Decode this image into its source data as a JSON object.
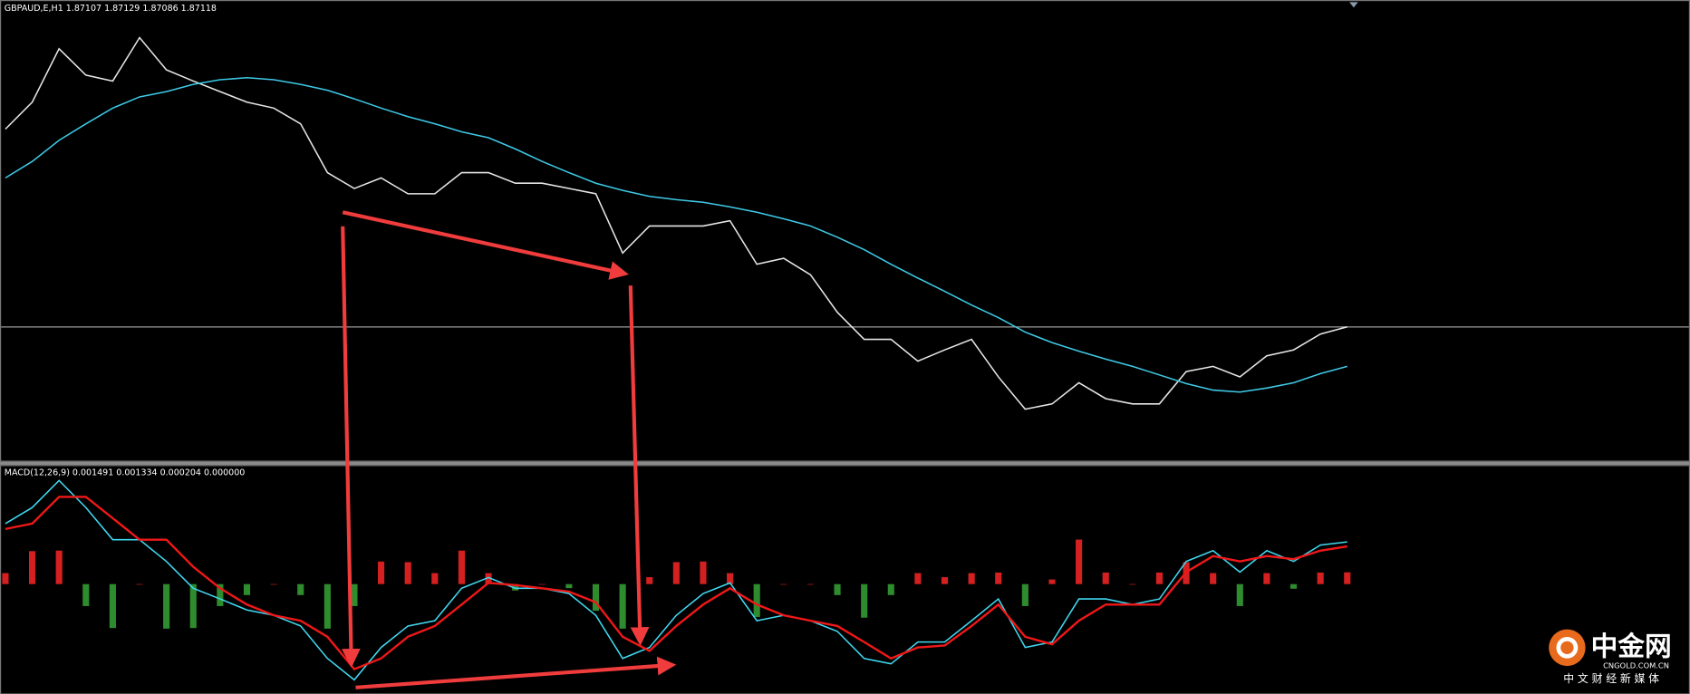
{
  "chart_data": [
    {
      "type": "line",
      "title": "GBPAUD,E,H1  1.87107 1.87129 1.87086 1.87118",
      "ylim": [
        1.8508,
        1.9208
      ],
      "price_line": 1.87118,
      "series": [
        {
          "color": "#e6e6e6",
          "values": [
            1.9012,
            1.9053,
            1.9134,
            1.9094,
            1.9085,
            1.9151,
            1.9102,
            1.9085,
            1.9069,
            1.9053,
            1.9044,
            1.902,
            1.8946,
            1.8922,
            1.8938,
            1.8914,
            1.8914,
            1.8946,
            1.8946,
            1.893,
            1.893,
            1.8922,
            1.8914,
            1.8824,
            1.8865,
            1.8865,
            1.8865,
            1.8873,
            1.8807,
            1.8816,
            1.8791,
            1.8734,
            1.8693,
            1.8693,
            1.866,
            1.8677,
            1.8693,
            1.8636,
            1.8587,
            1.8595,
            1.8627,
            1.8603,
            1.8595,
            1.8595,
            1.8644,
            1.8652,
            1.8636,
            1.8668,
            1.8677,
            1.8701,
            1.8712
          ]
        },
        {
          "color": "#3ec9e6",
          "values": [
            1.8938,
            1.8963,
            1.8995,
            1.902,
            1.9044,
            1.9061,
            1.9069,
            1.908,
            1.9087,
            1.909,
            1.9087,
            1.908,
            1.9071,
            1.9058,
            1.9044,
            1.9031,
            1.902,
            1.9008,
            1.8999,
            1.8982,
            1.8963,
            1.8946,
            1.893,
            1.8919,
            1.891,
            1.8905,
            1.8901,
            1.8894,
            1.8886,
            1.8876,
            1.8865,
            1.8848,
            1.8829,
            1.8807,
            1.8786,
            1.8766,
            1.8745,
            1.8726,
            1.8704,
            1.8688,
            1.8675,
            1.8663,
            1.8652,
            1.8639,
            1.8626,
            1.8616,
            1.8613,
            1.8619,
            1.8627,
            1.8641,
            1.8652
          ]
        }
      ]
    },
    {
      "type": "line",
      "title": "MACD(12,26,9) 0.001491 0.001334 0.000204 0.000000",
      "ylim": [
        -0.0039,
        0.0042
      ],
      "y2lim": [
        -0.0019,
        0.00205
      ],
      "series": [
        {
          "type": "bar",
          "axis": "y2",
          "color": "#d42020",
          "negative_color": "#2e8b2e",
          "values": [
            0.00019,
            0.00057,
            0.00058,
            -0.00038,
            -0.00076,
            0,
            -0.00077,
            -0.00076,
            -0.00038,
            -0.00019,
            0,
            -0.00019,
            -0.00077,
            -0.00038,
            0.00039,
            0.00038,
            0.00019,
            0.00058,
            0.00019,
            -0.00011,
            0,
            -7e-05,
            -0.00046,
            -0.00077,
            0.00012,
            0.00038,
            0.00039,
            0.00019,
            -0.00057,
            0,
            0,
            -0.00019,
            -0.00058,
            -0.00019,
            0.00019,
            0.00012,
            0.00019,
            0.0002,
            -0.00038,
            8e-05,
            0.00077,
            0.0002,
            0,
            0.0002,
            0.00038,
            0.00019,
            -0.00038,
            0.00019,
            -8e-05,
            0.0002,
            0.000204
          ]
        },
        {
          "color": "#40d8f0",
          "values": [
            0.00214,
            0.00271,
            0.00367,
            0.00271,
            0.00157,
            0.00157,
            0.0008,
            -0.00015,
            -0.00053,
            -0.00092,
            -0.00111,
            -0.00149,
            -0.00264,
            -0.0034,
            -0.00225,
            -0.00149,
            -0.0013,
            -0.00015,
            0.00023,
            -0.00015,
            -0.00015,
            -0.00034,
            -0.00111,
            -0.00264,
            -0.00225,
            -0.00111,
            -0.00034,
            4e-05,
            -0.0013,
            -0.00111,
            -0.0013,
            -0.00168,
            -0.00264,
            -0.00283,
            -0.00206,
            -0.00206,
            -0.0013,
            -0.00053,
            -0.00225,
            -0.00206,
            -0.00053,
            -0.00053,
            -0.00073,
            -0.00053,
            0.0008,
            0.00118,
            0.00042,
            0.00118,
            0.0008,
            0.00138,
            0.001491
          ]
        },
        {
          "color": "#f01818",
          "values": [
            0.00195,
            0.00214,
            0.00309,
            0.00309,
            0.00233,
            0.00157,
            0.00157,
            0.00061,
            -0.00015,
            -0.00073,
            -0.00111,
            -0.0013,
            -0.00187,
            -0.00302,
            -0.00264,
            -0.00187,
            -0.00149,
            -0.00073,
            4e-05,
            -4e-05,
            -0.00015,
            -0.00027,
            -0.00065,
            -0.00187,
            -0.00237,
            -0.00149,
            -0.00073,
            -0.00015,
            -0.00073,
            -0.00111,
            -0.0013,
            -0.00149,
            -0.00206,
            -0.00264,
            -0.00225,
            -0.00218,
            -0.00149,
            -0.00073,
            -0.00187,
            -0.00214,
            -0.0013,
            -0.00073,
            -0.00073,
            -0.00073,
            0.00042,
            0.00099,
            0.0008,
            0.00099,
            0.00088,
            0.00118,
            0.001334
          ]
        }
      ]
    }
  ],
  "watermark": {
    "logo": "中金网",
    "site": "CNGOLD.COM.CN",
    "slogan": "中 文 财 经 新 媒 体"
  }
}
